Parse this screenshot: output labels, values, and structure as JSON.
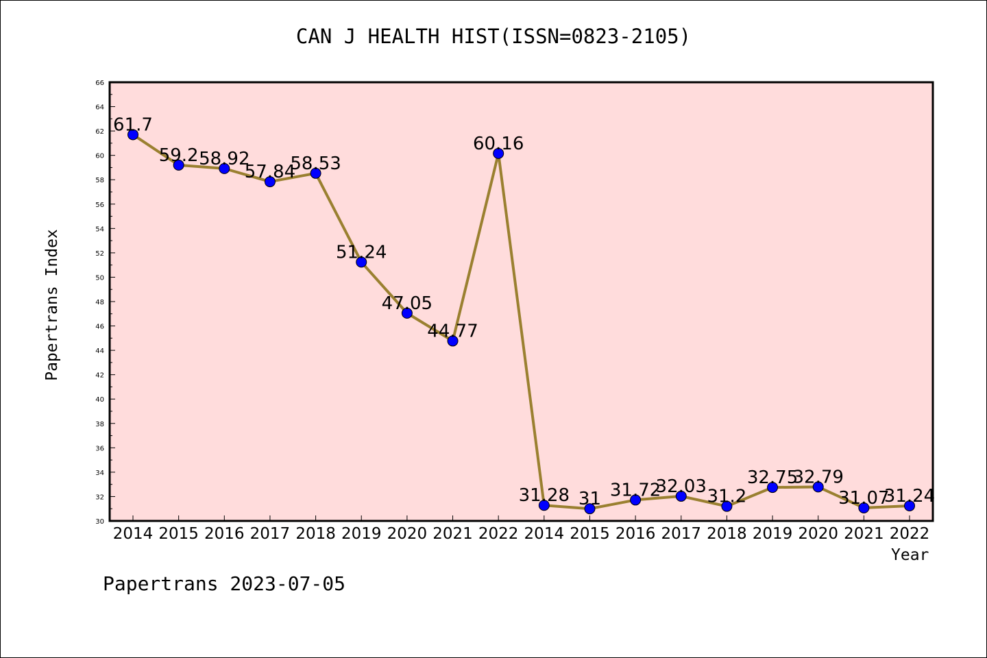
{
  "chart_data": {
    "type": "line",
    "title": "CAN J HEALTH HIST(ISSN=0823-2105)",
    "xlabel": "Year",
    "ylabel": "Papertrans Index",
    "footer": "Papertrans 2023-07-05",
    "categories": [
      "2014",
      "2015",
      "2016",
      "2017",
      "2018",
      "2019",
      "2020",
      "2021",
      "2022",
      "2014",
      "2015",
      "2016",
      "2017",
      "2018",
      "2019",
      "2020",
      "2021",
      "2022"
    ],
    "values": [
      61.7,
      59.2,
      58.92,
      57.84,
      58.53,
      51.24,
      47.05,
      44.77,
      60.16,
      31.28,
      31,
      31.72,
      32.03,
      31.2,
      32.75,
      32.79,
      31.07,
      31.24
    ],
    "data_labels": [
      "61.7",
      "59.2",
      "58.92",
      "57.84",
      "58.53",
      "51.24",
      "47.05",
      "44.77",
      "60.16",
      "31.28",
      "31",
      "31.72",
      "32.03",
      "31.2",
      "32.75",
      "32.79",
      "31.07",
      "31.24"
    ],
    "ylim": [
      30,
      66
    ],
    "yticks": [
      "30",
      "32",
      "34",
      "36",
      "38",
      "40",
      "42",
      "44",
      "46",
      "48",
      "50",
      "52",
      "54",
      "56",
      "58",
      "60",
      "62",
      "64",
      "66"
    ],
    "grid": false,
    "colors": {
      "background": "#ffdcdc",
      "line": "#9a8030",
      "marker": "#0000ff"
    }
  }
}
